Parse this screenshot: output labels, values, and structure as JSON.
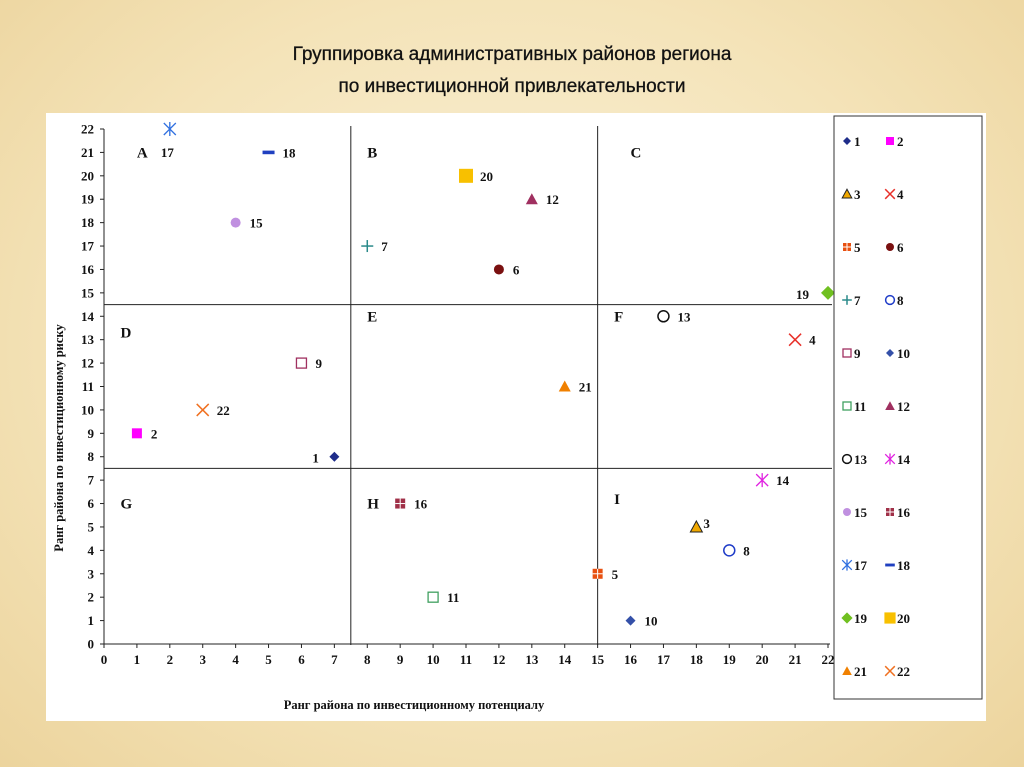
{
  "title_line1": "Группировка административных районов региона",
  "title_line2": "по инвестиционной привлекательности",
  "chart_data": {
    "type": "scatter",
    "xlabel": "Ранг района по инвестиционному потенциалу",
    "ylabel": "Ранг района по инвестиционному риску",
    "xlim": [
      0,
      22
    ],
    "ylim": [
      0,
      22
    ],
    "x_ticks": [
      "0",
      "1",
      "2",
      "3",
      "4",
      "5",
      "6",
      "7",
      "8",
      "9",
      "10",
      "11",
      "12",
      "13",
      "14",
      "15",
      "16",
      "17",
      "18",
      "19",
      "20",
      "21",
      "22"
    ],
    "y_ticks": [
      "0",
      "1",
      "2",
      "3",
      "4",
      "5",
      "6",
      "7",
      "8",
      "9",
      "10",
      "11",
      "12",
      "13",
      "14",
      "15",
      "16",
      "17",
      "18",
      "19",
      "20",
      "21",
      "22"
    ],
    "grid": false,
    "divider_x": [
      7.5,
      15
    ],
    "divider_y": [
      7.5,
      14.5
    ],
    "zones": [
      {
        "label": "A",
        "x": 1,
        "y": 21
      },
      {
        "label": "B",
        "x": 8,
        "y": 21
      },
      {
        "label": "C",
        "x": 16,
        "y": 21
      },
      {
        "label": "D",
        "x": 0.5,
        "y": 13.3
      },
      {
        "label": "E",
        "x": 8,
        "y": 14
      },
      {
        "label": "F",
        "x": 15.5,
        "y": 14
      },
      {
        "label": "G",
        "x": 0.5,
        "y": 6
      },
      {
        "label": "H",
        "x": 8,
        "y": 6
      },
      {
        "label": "I",
        "x": 15.5,
        "y": 6.2
      }
    ],
    "series": [
      {
        "name": "1",
        "x": 7,
        "y": 8,
        "marker": "diamond-small",
        "color": "#1f2d8a"
      },
      {
        "name": "2",
        "x": 1,
        "y": 9,
        "marker": "square",
        "color": "#ff00ff"
      },
      {
        "name": "3",
        "x": 18,
        "y": 5,
        "marker": "triangle-outline",
        "color": "#f0a800"
      },
      {
        "name": "4",
        "x": 21,
        "y": 13,
        "marker": "x",
        "color": "#e8302a"
      },
      {
        "name": "5",
        "x": 15,
        "y": 3,
        "marker": "square-plus",
        "color": "#e85010"
      },
      {
        "name": "6",
        "x": 12,
        "y": 16,
        "marker": "circle",
        "color": "#7a1010"
      },
      {
        "name": "7",
        "x": 8,
        "y": 17,
        "marker": "plus",
        "color": "#2a8a8a"
      },
      {
        "name": "8",
        "x": 19,
        "y": 4,
        "marker": "circle-open",
        "color": "#1f3cc8"
      },
      {
        "name": "9",
        "x": 6,
        "y": 12,
        "marker": "square-open",
        "color": "#a03060"
      },
      {
        "name": "10",
        "x": 16,
        "y": 1,
        "marker": "diamond-small",
        "color": "#3450a8"
      },
      {
        "name": "11",
        "x": 10,
        "y": 2,
        "marker": "square-open",
        "color": "#40a060"
      },
      {
        "name": "12",
        "x": 13,
        "y": 19,
        "marker": "triangle",
        "color": "#a03060"
      },
      {
        "name": "13",
        "x": 17,
        "y": 14,
        "marker": "circle-open",
        "color": "#111111"
      },
      {
        "name": "14",
        "x": 20,
        "y": 7,
        "marker": "star",
        "color": "#e020e0"
      },
      {
        "name": "15",
        "x": 4,
        "y": 18,
        "marker": "circle",
        "color": "#c090e0"
      },
      {
        "name": "16",
        "x": 9,
        "y": 6,
        "marker": "square-plus",
        "color": "#a03048"
      },
      {
        "name": "17",
        "x": 2,
        "y": 22,
        "marker": "star",
        "color": "#3070e0"
      },
      {
        "name": "18",
        "x": 5,
        "y": 21,
        "marker": "dash",
        "color": "#2040c0"
      },
      {
        "name": "19",
        "x": 22,
        "y": 15,
        "marker": "diamond",
        "color": "#70c020"
      },
      {
        "name": "20",
        "x": 11,
        "y": 20,
        "marker": "square-big",
        "color": "#f8c000"
      },
      {
        "name": "21",
        "x": 14,
        "y": 11,
        "marker": "triangle",
        "color": "#f08000"
      },
      {
        "name": "22",
        "x": 3,
        "y": 10,
        "marker": "x",
        "color": "#f07020"
      }
    ],
    "legend": {
      "placement": "right",
      "columns": 2
    }
  }
}
